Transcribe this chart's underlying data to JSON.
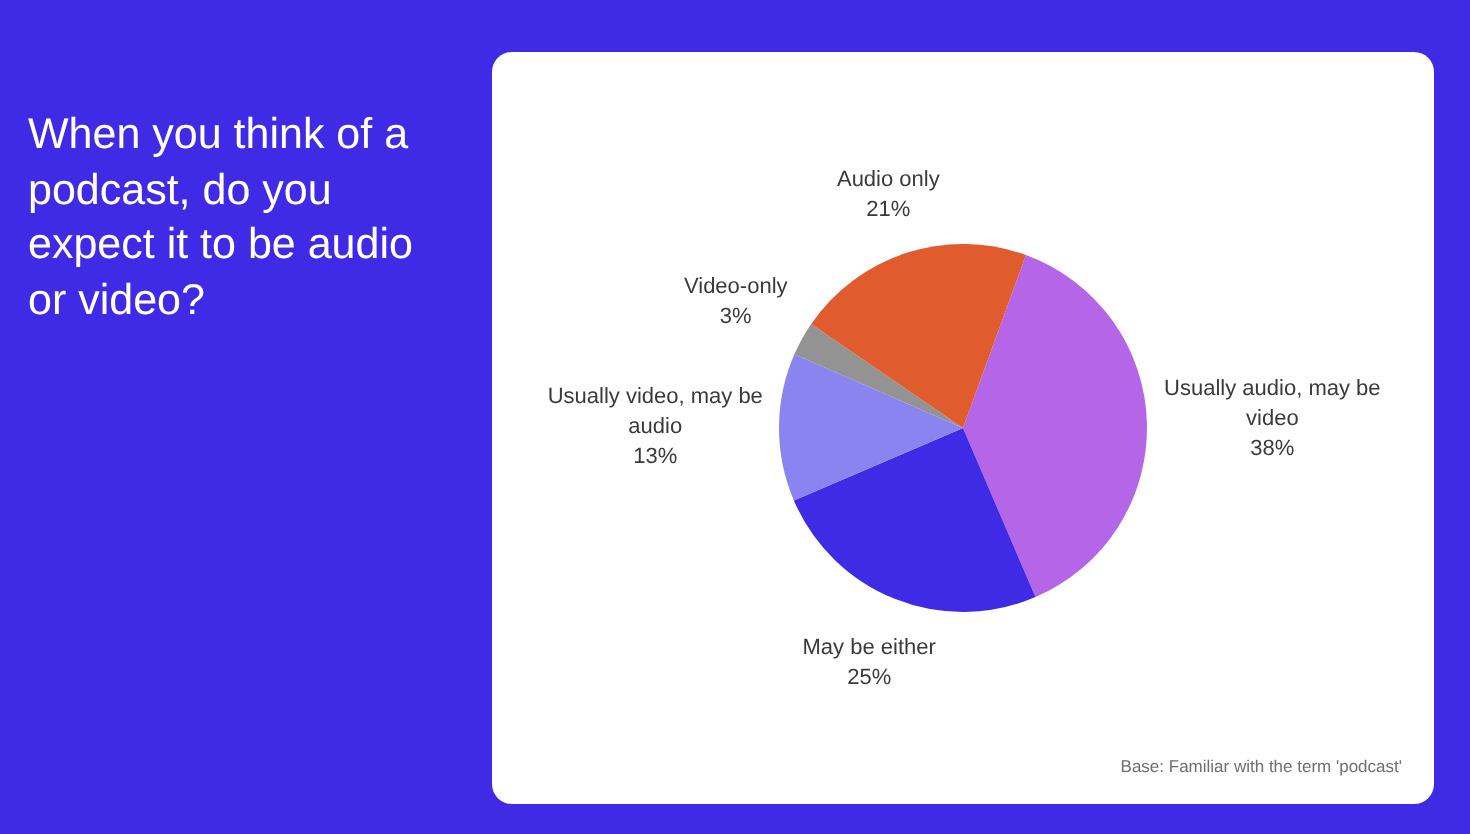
{
  "chart_data": {
    "type": "pie",
    "title": "When you think of a podcast, do you expect it to be audio or video?",
    "categories": [
      "Usually audio, may be video",
      "May be either",
      "Usually video, may be audio",
      "Video-only",
      "Audio only"
    ],
    "values": [
      38,
      25,
      13,
      3,
      21
    ],
    "colors": [
      "#b565e8",
      "#3f2ae6",
      "#8a84f0",
      "#939393",
      "#e05c2e"
    ],
    "value_labels": [
      "38%",
      "25%",
      "13%",
      "3%",
      "21%"
    ],
    "annotations": [
      "Base: Familiar with the term 'podcast'"
    ]
  }
}
